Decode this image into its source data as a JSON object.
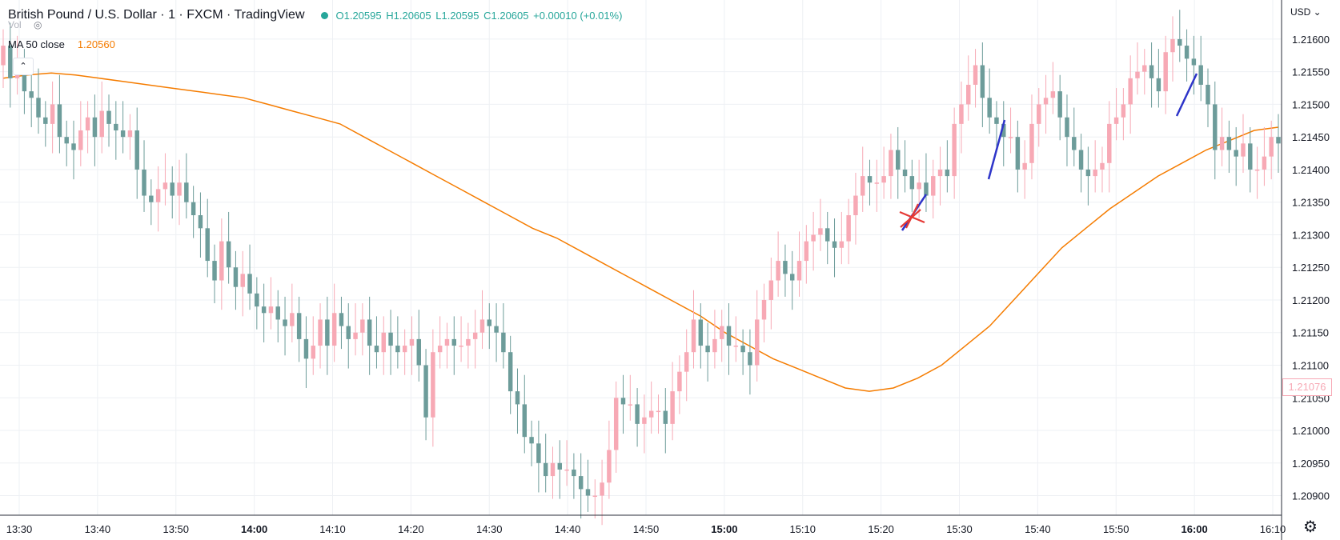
{
  "header": {
    "symbol": "British Pound / U.S. Dollar · 1 · FXCM · TradingView",
    "open": "O1.20595",
    "high": "H1.20605",
    "low": "L1.20595",
    "close": "C1.20605",
    "change": "+0.00010 (+0.01%)",
    "status_color": "#26a69a"
  },
  "volume_label": "Vol",
  "indicator": {
    "name": "MA 50 close",
    "value": "1.20560",
    "color": "#f57c00"
  },
  "price_axis": {
    "currency": "USD"
  },
  "last_price_label": "1.21076",
  "settings_icon": "gear-icon",
  "chart_data": {
    "type": "candlestick",
    "xlabel": "",
    "ylabel": "",
    "ylim": [
      1.2087,
      1.2166
    ],
    "x_ticks": [
      "13:30",
      "13:40",
      "13:50",
      "14:00",
      "14:10",
      "14:20",
      "14:30",
      "14:40",
      "14:50",
      "15:00",
      "15:10",
      "15:20",
      "15:30",
      "15:40",
      "15:50",
      "16:00",
      "16:10"
    ],
    "x_ticks_bold": [
      "14:00",
      "15:00",
      "16:00"
    ],
    "y_ticks": [
      1.209,
      1.2095,
      1.21,
      1.2105,
      1.211,
      1.2115,
      1.212,
      1.2125,
      1.213,
      1.2135,
      1.214,
      1.2145,
      1.215,
      1.2155,
      1.216
    ],
    "colors": {
      "up": "#f7a9b5",
      "down": "#6d9c9a",
      "ma": "#f57c00"
    },
    "close": [
      1.2159,
      1.2154,
      1.2156,
      1.2152,
      1.2151,
      1.2148,
      1.2147,
      1.215,
      1.2145,
      1.2144,
      1.2143,
      1.2146,
      1.2148,
      1.2145,
      1.2149,
      1.2147,
      1.2146,
      1.2145,
      1.2146,
      1.214,
      1.2136,
      1.2135,
      1.2137,
      1.2138,
      1.2136,
      1.2138,
      1.2135,
      1.2133,
      1.2131,
      1.2126,
      1.2123,
      1.2129,
      1.2125,
      1.2122,
      1.2124,
      1.2121,
      1.2119,
      1.2118,
      1.2119,
      1.2117,
      1.2116,
      1.2118,
      1.2114,
      1.2111,
      1.2113,
      1.2117,
      1.2113,
      1.2118,
      1.2116,
      1.2114,
      1.2115,
      1.2117,
      1.2113,
      1.2112,
      1.2115,
      1.2113,
      1.2112,
      1.2113,
      1.2114,
      1.211,
      1.2102,
      1.2112,
      1.2113,
      1.2114,
      1.2113,
      1.2113,
      1.2114,
      1.2115,
      1.2117,
      1.2116,
      1.2115,
      1.2112,
      1.2106,
      1.2104,
      1.2099,
      1.2098,
      1.2095,
      1.2093,
      1.2095,
      1.2094,
      1.2094,
      1.2093,
      1.2091,
      1.209,
      1.209,
      1.2092,
      1.2097,
      1.2105,
      1.2104,
      1.2104,
      1.2101,
      1.2102,
      1.2103,
      1.2103,
      1.2101,
      1.2106,
      1.2109,
      1.2112,
      1.2117,
      1.2113,
      1.2112,
      1.2114,
      1.2116,
      1.2113,
      1.2113,
      1.2112,
      1.211,
      1.2117,
      1.212,
      1.2123,
      1.2126,
      1.2124,
      1.2123,
      1.2126,
      1.2129,
      1.213,
      1.2131,
      1.2129,
      1.2128,
      1.2129,
      1.2133,
      1.2136,
      1.2139,
      1.2138,
      1.2138,
      1.2139,
      1.2143,
      1.214,
      1.2139,
      1.2137,
      1.2138,
      1.2136,
      1.2139,
      1.214,
      1.2139,
      1.2147,
      1.215,
      1.2153,
      1.2156,
      1.2151,
      1.2148,
      1.2147,
      1.2145,
      1.2145,
      1.214,
      1.2141,
      1.2147,
      1.215,
      1.2151,
      1.2152,
      1.2148,
      1.2145,
      1.2143,
      1.214,
      1.2139,
      1.214,
      1.2141,
      1.2147,
      1.2148,
      1.215,
      1.2154,
      1.2155,
      1.2156,
      1.2154,
      1.2152,
      1.2158,
      1.216,
      1.2159,
      1.2157,
      1.2156,
      1.2153,
      1.215,
      1.2143,
      1.2145,
      1.2143,
      1.2142,
      1.2144,
      1.214,
      1.214,
      1.2142,
      1.2145,
      1.2144
    ],
    "ma_close": [
      1.2154,
      1.21545,
      1.21548,
      1.21545,
      1.2154,
      1.21535,
      1.2153,
      1.21525,
      1.2152,
      1.21515,
      1.2151,
      1.215,
      1.2149,
      1.2148,
      1.2147,
      1.2145,
      1.2143,
      1.2141,
      1.2139,
      1.2137,
      1.2135,
      1.2133,
      1.2131,
      1.21295,
      1.21275,
      1.21255,
      1.21235,
      1.21215,
      1.21195,
      1.21175,
      1.2115,
      1.2113,
      1.2111,
      1.21095,
      1.2108,
      1.21065,
      1.2106,
      1.21065,
      1.2108,
      1.211,
      1.2113,
      1.2116,
      1.212,
      1.2124,
      1.2128,
      1.2131,
      1.2134,
      1.21365,
      1.2139,
      1.2141,
      1.2143,
      1.21445,
      1.2146,
      1.21465
    ]
  }
}
